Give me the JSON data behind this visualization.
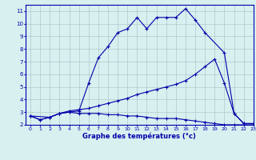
{
  "line1_x": [
    0,
    1,
    2,
    3,
    4,
    5,
    6,
    7,
    8,
    9,
    10,
    11,
    12,
    13,
    14,
    15,
    16,
    17,
    18,
    20,
    21,
    22,
    23
  ],
  "line1_y": [
    2.7,
    2.4,
    2.6,
    2.9,
    3.0,
    3.1,
    5.3,
    7.3,
    8.2,
    9.3,
    9.6,
    10.5,
    9.6,
    10.5,
    10.5,
    10.5,
    11.2,
    10.3,
    9.3,
    7.7,
    2.9,
    2.1,
    2.1
  ],
  "line2_x": [
    0,
    2,
    3,
    4,
    5,
    6,
    7,
    8,
    9,
    10,
    11,
    12,
    13,
    14,
    15,
    16,
    17,
    18,
    19,
    20,
    21,
    22,
    23
  ],
  "line2_y": [
    2.7,
    2.6,
    2.9,
    3.1,
    3.2,
    3.3,
    3.5,
    3.7,
    3.9,
    4.1,
    4.4,
    4.6,
    4.8,
    5.0,
    5.2,
    5.5,
    6.0,
    6.6,
    7.2,
    5.3,
    2.9,
    2.1,
    2.1
  ],
  "line3_x": [
    0,
    1,
    2,
    3,
    4,
    5,
    6,
    7,
    8,
    9,
    10,
    11,
    12,
    13,
    14,
    15,
    16,
    17,
    18,
    19,
    20,
    21,
    22,
    23
  ],
  "line3_y": [
    2.7,
    2.4,
    2.6,
    2.9,
    3.0,
    2.9,
    2.9,
    2.9,
    2.8,
    2.8,
    2.7,
    2.7,
    2.6,
    2.5,
    2.5,
    2.5,
    2.4,
    2.3,
    2.2,
    2.1,
    2.0,
    2.0,
    2.0,
    2.0
  ],
  "line_color": "#0000aa",
  "bg_color": "#d8f0f0",
  "grid_color": "#aacccc",
  "xlabel": "Graphe des températures (°c)",
  "xlim": [
    -0.5,
    23
  ],
  "ylim": [
    2,
    11.5
  ],
  "yticks": [
    2,
    3,
    4,
    5,
    6,
    7,
    8,
    9,
    10,
    11
  ],
  "xticks": [
    0,
    1,
    2,
    3,
    4,
    5,
    6,
    7,
    8,
    9,
    10,
    11,
    12,
    13,
    14,
    15,
    16,
    17,
    18,
    19,
    20,
    21,
    22,
    23
  ]
}
